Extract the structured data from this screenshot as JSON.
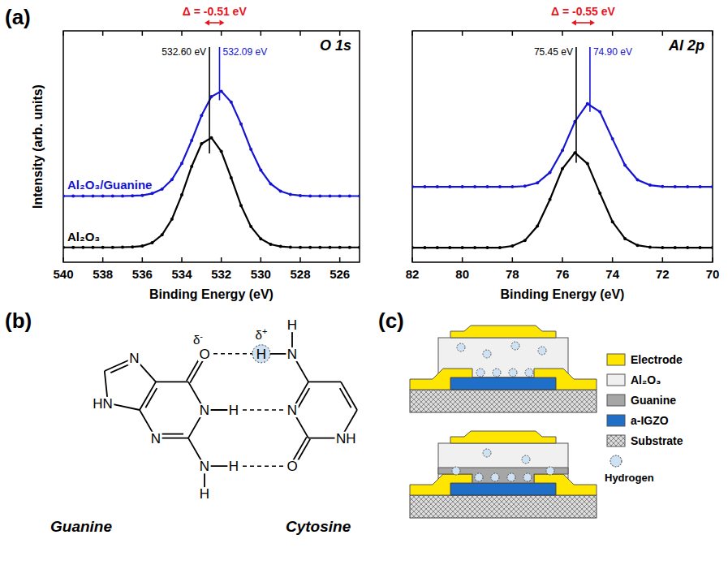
{
  "chart_data": [
    {
      "type": "line",
      "title": "O 1s",
      "xlabel": "Binding Energy (eV)",
      "ylabel": "Intensity (arb. units)",
      "x": [
        540,
        539.5,
        539,
        538.5,
        538,
        537.5,
        537,
        536.5,
        536,
        535.5,
        535,
        534.5,
        534,
        533.5,
        533,
        532.5,
        532,
        531.5,
        531,
        530.5,
        530,
        529.5,
        529,
        528.5,
        528,
        527.5,
        527,
        526.5,
        526,
        525.5,
        525
      ],
      "series": [
        {
          "name": "Al₂O₃",
          "color": "#000000",
          "values": [
            0.64,
            0.64,
            0.64,
            0.64,
            0.64,
            0.64,
            0.65,
            0.66,
            0.7,
            0.84,
            1.18,
            1.86,
            2.91,
            4.14,
            5.12,
            5.38,
            4.79,
            3.65,
            2.45,
            1.54,
            1.01,
            0.77,
            0.68,
            0.65,
            0.64,
            0.64,
            0.64,
            0.64,
            0.64,
            0.64,
            0.64
          ]
        },
        {
          "name": "Al₂O₃/Guanine",
          "color": "#1414d2",
          "values": [
            2.86,
            2.86,
            2.86,
            2.86,
            2.86,
            2.86,
            2.86,
            2.87,
            2.89,
            2.97,
            3.16,
            3.57,
            4.27,
            5.26,
            6.34,
            7.16,
            7.39,
            6.92,
            5.97,
            4.88,
            3.98,
            3.39,
            3.07,
            2.93,
            2.88,
            2.86,
            2.86,
            2.86,
            2.86,
            2.86,
            2.86
          ]
        }
      ],
      "xlim": [
        540,
        525
      ],
      "xticks": [
        540,
        538,
        536,
        534,
        532,
        530,
        528,
        526
      ],
      "ylim": [
        0,
        10
      ],
      "tick_labels": "x",
      "marker": "circle",
      "grid": false,
      "annotations": {
        "peaks": [
          {
            "x": 532.6,
            "label": "532.60 eV",
            "color": "#000000",
            "ymin": 4.7,
            "ymax": 9.3
          },
          {
            "x": 532.09,
            "label": "532.09 eV",
            "color": "#1414d2",
            "ymin": 7.0,
            "ymax": 9.3
          }
        ],
        "shift": {
          "label": "Δ = -0.51 eV",
          "color": "#e8141e"
        }
      }
    },
    {
      "type": "line",
      "title": "Al 2p",
      "xlabel": "Binding Energy (eV)",
      "x": [
        82,
        81.5,
        81,
        80.5,
        80,
        79.5,
        79,
        78.5,
        78,
        77.5,
        77,
        76.5,
        76,
        75.5,
        75,
        74.5,
        74,
        73.5,
        73,
        72.5,
        72,
        71.5,
        71,
        70.5,
        70
      ],
      "series": [
        {
          "color": "#000000",
          "values": [
            0.63,
            0.63,
            0.63,
            0.63,
            0.63,
            0.63,
            0.63,
            0.63,
            0.7,
            0.94,
            1.56,
            2.71,
            4.04,
            4.73,
            4.26,
            2.98,
            1.75,
            1.02,
            0.73,
            0.65,
            0.63,
            0.63,
            0.63,
            0.63,
            0.63
          ]
        },
        {
          "color": "#1414d2",
          "values": [
            3.26,
            3.26,
            3.26,
            3.26,
            3.26,
            3.26,
            3.26,
            3.26,
            3.26,
            3.29,
            3.43,
            3.88,
            4.83,
            6.08,
            6.85,
            6.5,
            5.33,
            4.19,
            3.56,
            3.33,
            3.27,
            3.26,
            3.26,
            3.26,
            3.26
          ]
        }
      ],
      "xlim": [
        82,
        70
      ],
      "xticks": [
        82,
        80,
        78,
        76,
        74,
        72,
        70
      ],
      "ylim": [
        0,
        10
      ],
      "tick_labels": "x",
      "marker": "circle",
      "grid": false,
      "annotations": {
        "peaks": [
          {
            "x": 75.45,
            "label": "75.45 eV",
            "color": "#000000",
            "ymin": 4.3,
            "ymax": 9.3
          },
          {
            "x": 74.9,
            "label": "74.90 eV",
            "color": "#1414d2",
            "ymin": 6.5,
            "ymax": 9.3
          }
        ],
        "shift": {
          "label": "Δ = -0.55 eV",
          "color": "#e8141e"
        }
      }
    }
  ],
  "figure": {
    "panel_labels": [
      "(a)",
      "(b)",
      "(c)"
    ]
  },
  "structure": {
    "guanine": {
      "name": "Guanine",
      "atoms": [
        "N",
        "HN",
        "N",
        "N",
        "O",
        "N",
        "H",
        "H",
        "H"
      ]
    },
    "cytosine": {
      "name": "Cytosine",
      "atoms": [
        "N",
        "N",
        "H",
        "H",
        "O",
        "NH"
      ]
    },
    "charges": [
      "δ-",
      "δ+"
    ]
  },
  "device": {
    "layers": [
      {
        "label": "Electrode",
        "color": "#ffe600"
      },
      {
        "label": "Al₂O₃",
        "color": "#f0f0f0"
      },
      {
        "label": "Guanine",
        "color": "#a6a6a6"
      },
      {
        "label": "a-IGZO",
        "color": "#1f6fc8"
      },
      {
        "label": "Substrate",
        "color": "#dcdcdc"
      },
      {
        "label": "Hydrogen",
        "color": "#cfe2f3"
      }
    ]
  }
}
